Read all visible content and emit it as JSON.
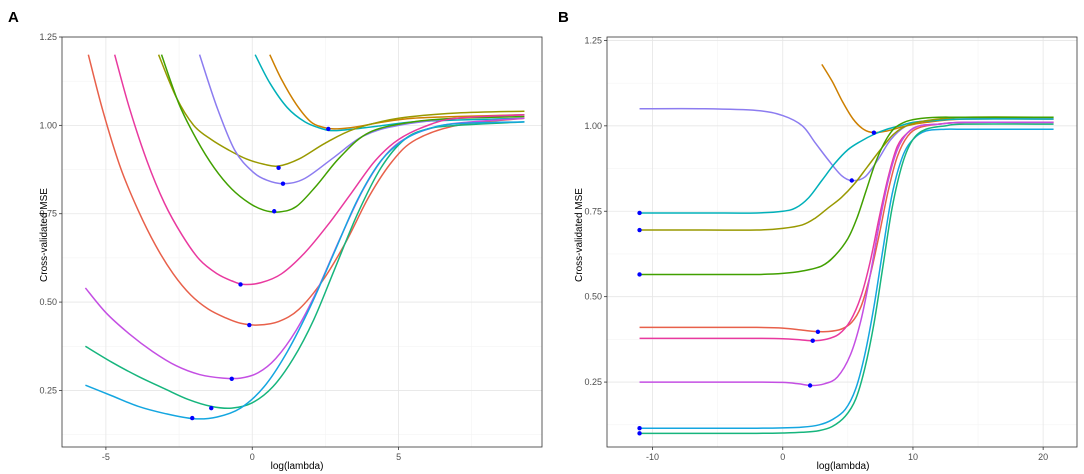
{
  "chart_data": [
    {
      "type": "line",
      "panel_label": "A",
      "xlabel": "log(lambda)",
      "ylabel": "Cross-validated MSE",
      "xlim": [
        -6.5,
        9.9
      ],
      "ylim": [
        0.09,
        1.25
      ],
      "xticks": [
        -5,
        0,
        5
      ],
      "xtick_labels": [
        "-5",
        "0",
        "5"
      ],
      "yticks": [
        0.25,
        0.5,
        0.75,
        1.0,
        1.25
      ],
      "ytick_labels": [
        "0.25",
        "0.50",
        "0.75",
        "1.00",
        "1.25"
      ],
      "grid": true,
      "legend": "none",
      "series": [
        {
          "name": "curve-orange",
          "color": "#cd7f00",
          "x": [
            0.6,
            1.0,
            1.5,
            2.0,
            2.4,
            2.8,
            3.5,
            4.5,
            5.5,
            7.0,
            9.3
          ],
          "y": [
            1.2,
            1.13,
            1.06,
            1.01,
            0.995,
            0.99,
            0.995,
            1.01,
            1.02,
            1.025,
            1.03
          ]
        },
        {
          "name": "curve-teal",
          "color": "#00b0b9",
          "x": [
            0.1,
            0.6,
            1.2,
            1.8,
            2.4,
            2.8,
            3.5,
            4.5,
            5.5,
            7.0,
            9.3
          ],
          "y": [
            1.2,
            1.12,
            1.05,
            1.01,
            0.99,
            0.985,
            0.99,
            1.0,
            1.01,
            1.015,
            1.02
          ]
        },
        {
          "name": "curve-olive",
          "color": "#999900",
          "x": [
            -3.2,
            -2.6,
            -2.0,
            -1.4,
            -0.8,
            -0.2,
            0.4,
            0.9,
            1.6,
            2.5,
            3.5,
            5.0,
            7.0,
            9.3
          ],
          "y": [
            1.2,
            1.08,
            1.0,
            0.96,
            0.93,
            0.905,
            0.89,
            0.885,
            0.905,
            0.95,
            0.99,
            1.02,
            1.035,
            1.04
          ]
        },
        {
          "name": "curve-purple",
          "color": "#8c7cf0",
          "x": [
            -1.8,
            -1.2,
            -0.6,
            0.0,
            0.5,
            1.1,
            1.8,
            2.8,
            3.8,
            5.0,
            7.0,
            9.3
          ],
          "y": [
            1.2,
            1.05,
            0.93,
            0.87,
            0.845,
            0.835,
            0.85,
            0.91,
            0.97,
            1.0,
            1.02,
            1.03
          ]
        },
        {
          "name": "curve-green",
          "color": "#41a000",
          "x": [
            -3.1,
            -2.5,
            -1.9,
            -1.3,
            -0.7,
            -0.1,
            0.4,
            0.9,
            1.5,
            2.2,
            3.0,
            4.0,
            5.5,
            7.0,
            9.3
          ],
          "y": [
            1.2,
            1.06,
            0.96,
            0.88,
            0.82,
            0.78,
            0.76,
            0.755,
            0.77,
            0.83,
            0.91,
            0.98,
            1.01,
            1.02,
            1.025
          ]
        },
        {
          "name": "curve-magenta",
          "color": "#e9399f",
          "x": [
            -4.7,
            -4.2,
            -3.6,
            -3.0,
            -2.4,
            -1.8,
            -1.2,
            -0.7,
            -0.3,
            0.3,
            1.0,
            1.8,
            2.6,
            3.4,
            4.2,
            5.0,
            6.0,
            7.0,
            9.3
          ],
          "y": [
            1.2,
            1.05,
            0.9,
            0.78,
            0.69,
            0.62,
            0.58,
            0.56,
            0.55,
            0.555,
            0.58,
            0.64,
            0.72,
            0.81,
            0.9,
            0.96,
            1.0,
            1.02,
            1.03
          ]
        },
        {
          "name": "curve-red",
          "color": "#e8604a",
          "x": [
            -5.6,
            -5.1,
            -4.5,
            -3.9,
            -3.3,
            -2.7,
            -2.1,
            -1.5,
            -0.9,
            -0.4,
            0.2,
            0.9,
            1.6,
            2.4,
            3.2,
            4.0,
            4.8,
            5.6,
            7.0,
            9.3
          ],
          "y": [
            1.2,
            1.04,
            0.88,
            0.76,
            0.66,
            0.58,
            0.52,
            0.48,
            0.455,
            0.44,
            0.435,
            0.445,
            0.48,
            0.56,
            0.67,
            0.8,
            0.9,
            0.96,
            1.0,
            1.02
          ]
        },
        {
          "name": "curve-violet",
          "color": "#c44fe3",
          "x": [
            -5.7,
            -5.0,
            -4.2,
            -3.4,
            -2.6,
            -1.8,
            -1.0,
            -0.4,
            0.2,
            0.8,
            1.5,
            2.2,
            3.0,
            3.8,
            4.6,
            5.4,
            6.5,
            7.5,
            9.3
          ],
          "y": [
            0.54,
            0.47,
            0.41,
            0.36,
            0.32,
            0.295,
            0.285,
            0.285,
            0.3,
            0.34,
            0.42,
            0.53,
            0.68,
            0.82,
            0.92,
            0.97,
            1.0,
            1.01,
            1.02
          ]
        },
        {
          "name": "curve-seagreen",
          "color": "#16b57d",
          "x": [
            -5.7,
            -4.8,
            -3.9,
            -3.0,
            -2.2,
            -1.4,
            -0.7,
            0.0,
            0.7,
            1.4,
            2.1,
            2.8,
            3.6,
            4.4,
            5.2,
            6.0,
            7.0,
            9.3
          ],
          "y": [
            0.375,
            0.33,
            0.29,
            0.255,
            0.225,
            0.205,
            0.2,
            0.215,
            0.26,
            0.34,
            0.45,
            0.59,
            0.75,
            0.88,
            0.96,
            0.99,
            1.0,
            1.01
          ]
        },
        {
          "name": "curve-skyblue",
          "color": "#14a6e0",
          "x": [
            -5.7,
            -4.8,
            -3.9,
            -3.0,
            -2.0,
            -1.2,
            -0.4,
            0.4,
            1.2,
            2.0,
            2.8,
            3.6,
            4.4,
            5.2,
            6.0,
            7.0,
            9.3
          ],
          "y": [
            0.265,
            0.235,
            0.205,
            0.185,
            0.17,
            0.175,
            0.2,
            0.26,
            0.36,
            0.49,
            0.64,
            0.79,
            0.9,
            0.96,
            0.99,
            1.005,
            1.01
          ]
        }
      ],
      "points": {
        "x": [
          2.6,
          0.9,
          1.05,
          0.75,
          -0.4,
          -0.1,
          -0.7,
          -1.4,
          -2.05
        ],
        "y": [
          0.99,
          0.88,
          0.835,
          0.757,
          0.55,
          0.435,
          0.283,
          0.2,
          0.172
        ]
      }
    },
    {
      "type": "line",
      "panel_label": "B",
      "xlabel": "log(lambda)",
      "ylabel": "Cross-validated MSE",
      "xlim": [
        -13.5,
        22.6
      ],
      "ylim": [
        0.06,
        1.26
      ],
      "xticks": [
        -10,
        0,
        10,
        20
      ],
      "xtick_labels": [
        "-10",
        "0",
        "10",
        "20"
      ],
      "yticks": [
        0.25,
        0.5,
        0.75,
        1.0,
        1.25
      ],
      "ytick_labels": [
        "0.25",
        "0.50",
        "0.75",
        "1.00",
        "1.25"
      ],
      "grid": true,
      "legend": "none",
      "series": [
        {
          "name": "curve-orange",
          "color": "#cd7f00",
          "x": [
            3.0,
            3.8,
            4.6,
            5.4,
            6.2,
            7.0,
            8.0,
            9.5,
            11.0,
            14.0,
            20.8
          ],
          "y": [
            1.18,
            1.13,
            1.07,
            1.02,
            0.99,
            0.98,
            0.985,
            1.0,
            1.01,
            1.02,
            1.02
          ]
        },
        {
          "name": "curve-purple",
          "color": "#8c7cf0",
          "x": [
            -11.0,
            -6.0,
            -2.0,
            0.0,
            1.5,
            2.5,
            3.5,
            4.5,
            5.3,
            6.3,
            7.3,
            8.3,
            9.5,
            11.0,
            14.0,
            20.8
          ],
          "y": [
            1.05,
            1.05,
            1.045,
            1.03,
            1.0,
            0.95,
            0.9,
            0.855,
            0.84,
            0.85,
            0.9,
            0.96,
            1.0,
            1.015,
            1.02,
            1.02
          ]
        },
        {
          "name": "curve-teal",
          "color": "#00b0b9",
          "x": [
            -11.0,
            -6.0,
            -2.0,
            0.0,
            1.0,
            2.0,
            3.0,
            4.0,
            5.0,
            6.0,
            7.0,
            8.0,
            9.0,
            10.0,
            11.5,
            14.0,
            20.8
          ],
          "y": [
            0.745,
            0.745,
            0.745,
            0.75,
            0.76,
            0.79,
            0.84,
            0.89,
            0.93,
            0.955,
            0.975,
            0.99,
            1.0,
            1.01,
            1.015,
            1.02,
            1.02
          ]
        },
        {
          "name": "curve-olive",
          "color": "#999900",
          "x": [
            -11.0,
            -6.0,
            -2.0,
            0.0,
            1.5,
            2.5,
            3.5,
            4.5,
            5.5,
            6.5,
            7.5,
            8.5,
            9.5,
            11.0,
            14.0,
            20.8
          ],
          "y": [
            0.695,
            0.695,
            0.695,
            0.7,
            0.71,
            0.73,
            0.76,
            0.79,
            0.83,
            0.88,
            0.93,
            0.975,
            1.0,
            1.015,
            1.025,
            1.025
          ]
        },
        {
          "name": "curve-green",
          "color": "#41a000",
          "x": [
            -11.0,
            -6.0,
            -2.0,
            0.0,
            1.5,
            3.0,
            4.0,
            5.0,
            5.7,
            6.4,
            7.1,
            7.8,
            8.5,
            9.3,
            10.3,
            12.0,
            14.0,
            20.8
          ],
          "y": [
            0.565,
            0.565,
            0.565,
            0.568,
            0.575,
            0.59,
            0.62,
            0.67,
            0.73,
            0.81,
            0.89,
            0.95,
            0.99,
            1.01,
            1.02,
            1.025,
            1.025,
            1.025
          ]
        },
        {
          "name": "curve-red",
          "color": "#e8604a",
          "x": [
            -11.0,
            -6.0,
            -2.0,
            0.0,
            1.5,
            2.5,
            3.5,
            4.5,
            5.3,
            6.0,
            6.7,
            7.4,
            8.1,
            8.8,
            9.6,
            10.5,
            12.0,
            14.0,
            20.8
          ],
          "y": [
            0.41,
            0.41,
            0.41,
            0.408,
            0.402,
            0.398,
            0.398,
            0.405,
            0.425,
            0.47,
            0.56,
            0.68,
            0.81,
            0.91,
            0.97,
            0.995,
            1.005,
            1.01,
            1.01
          ]
        },
        {
          "name": "curve-magenta",
          "color": "#e9399f",
          "x": [
            -11.0,
            -6.0,
            -2.0,
            0.0,
            1.3,
            2.3,
            3.3,
            4.3,
            5.2,
            6.0,
            6.7,
            7.4,
            8.1,
            8.8,
            9.6,
            10.5,
            12.0,
            14.0,
            20.8
          ],
          "y": [
            0.378,
            0.378,
            0.378,
            0.377,
            0.374,
            0.371,
            0.375,
            0.39,
            0.43,
            0.5,
            0.6,
            0.73,
            0.85,
            0.94,
            0.98,
            1.0,
            1.005,
            1.01,
            1.01
          ]
        },
        {
          "name": "curve-violet",
          "color": "#c44fe3",
          "x": [
            -11.0,
            -6.0,
            -2.0,
            0.0,
            1.2,
            2.2,
            3.2,
            4.2,
            5.2,
            6.0,
            6.7,
            7.4,
            8.1,
            8.8,
            9.6,
            10.5,
            12.0,
            14.0,
            20.8
          ],
          "y": [
            0.25,
            0.25,
            0.25,
            0.249,
            0.245,
            0.24,
            0.245,
            0.265,
            0.33,
            0.43,
            0.56,
            0.71,
            0.84,
            0.93,
            0.98,
            1.0,
            1.005,
            1.01,
            1.01
          ]
        },
        {
          "name": "curve-skyblue",
          "color": "#14a6e0",
          "x": [
            -11.0,
            -6.0,
            -2.0,
            0.0,
            1.5,
            2.8,
            3.8,
            4.8,
            5.6,
            6.3,
            7.0,
            7.7,
            8.4,
            9.2,
            10.0,
            11.0,
            12.5,
            14.0,
            20.8
          ],
          "y": [
            0.115,
            0.115,
            0.115,
            0.116,
            0.118,
            0.125,
            0.14,
            0.17,
            0.23,
            0.33,
            0.47,
            0.64,
            0.8,
            0.91,
            0.96,
            0.985,
            0.99,
            0.99,
            0.99
          ]
        },
        {
          "name": "curve-seagreen",
          "color": "#16b57d",
          "x": [
            -11.0,
            -6.0,
            -2.0,
            0.0,
            1.5,
            2.8,
            3.8,
            4.8,
            5.6,
            6.3,
            7.0,
            7.7,
            8.4,
            9.2,
            10.0,
            11.0,
            12.5,
            14.0,
            20.8
          ],
          "y": [
            0.1,
            0.1,
            0.1,
            0.101,
            0.103,
            0.108,
            0.12,
            0.15,
            0.2,
            0.29,
            0.42,
            0.59,
            0.76,
            0.89,
            0.96,
            0.99,
            1.0,
            1.005,
            1.005
          ]
        }
      ],
      "points": {
        "x": [
          7.0,
          5.3,
          -11.0,
          -11.0,
          -11.0,
          2.7,
          2.3,
          2.1,
          -11.0,
          -11.0
        ],
        "y": [
          0.98,
          0.84,
          0.745,
          0.695,
          0.565,
          0.397,
          0.371,
          0.24,
          0.115,
          0.1
        ]
      }
    }
  ]
}
